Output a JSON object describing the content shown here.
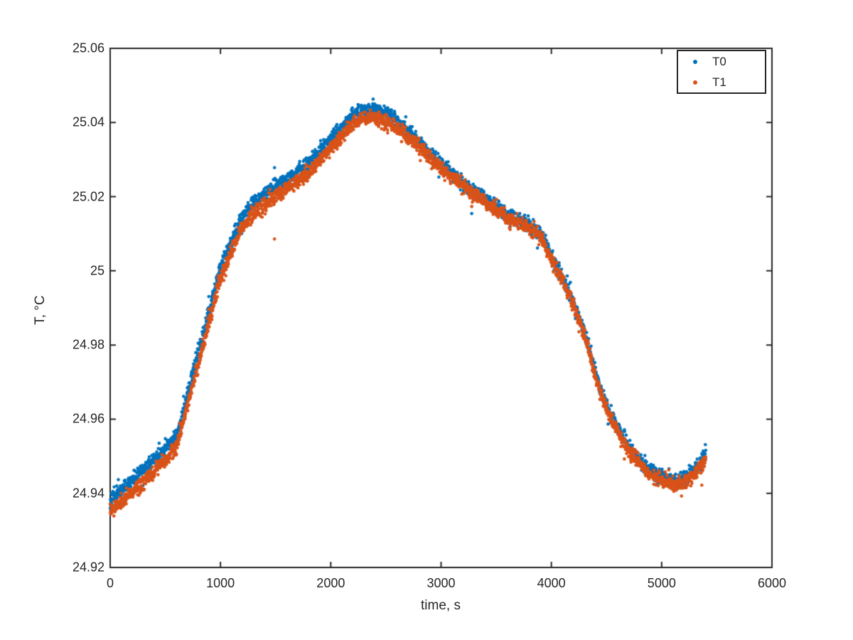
{
  "figure": {
    "background": "#ffffff",
    "axes_color": "#262626"
  },
  "chart_data": {
    "type": "scatter",
    "title": "",
    "xlabel": "time, s",
    "ylabel": "T, °C",
    "xlim": [
      0,
      6000
    ],
    "ylim": [
      24.92,
      25.06
    ],
    "grid": false,
    "x_ticks": [
      0,
      1000,
      2000,
      3000,
      4000,
      5000,
      6000
    ],
    "x_tick_labels": [
      "0",
      "1000",
      "2000",
      "3000",
      "4000",
      "5000",
      "6000"
    ],
    "y_ticks": [
      24.92,
      24.94,
      24.96,
      24.98,
      25.0,
      25.02,
      25.04,
      25.06
    ],
    "y_tick_labels": [
      "24.92",
      "24.94",
      "24.96",
      "24.98",
      "25",
      "25.02",
      "25.04",
      "25.06"
    ],
    "legend": {
      "position": "northeast",
      "entries": [
        {
          "label": "T0",
          "color": "#0072BD"
        },
        {
          "label": "T1",
          "color": "#D95319"
        }
      ]
    },
    "marker": {
      "style": "dot",
      "radius_px": 2.3
    },
    "sampling": {
      "t_start_s": 0,
      "t_end_s": 5400,
      "step_s": 2,
      "noise_sigma_C": 0.00095
    },
    "series": [
      {
        "name": "T0",
        "color": "#0072BD",
        "seed": 42,
        "anchors_t": [
          0,
          200,
          400,
          600,
          800,
          1000,
          1200,
          1300,
          1400,
          1600,
          1800,
          2000,
          2200,
          2300,
          2400,
          2500,
          2600,
          2800,
          3000,
          3200,
          3400,
          3600,
          3800,
          3900,
          4000,
          4100,
          4200,
          4300,
          4400,
          4500,
          4600,
          4700,
          4800,
          4900,
          5000,
          5100,
          5200,
          5300,
          5400
        ],
        "anchors_T": [
          24.9385,
          24.9435,
          24.949,
          24.9555,
          24.978,
          25.001,
          25.015,
          25.018,
          25.0205,
          25.0245,
          25.029,
          25.0355,
          25.042,
          25.0435,
          25.0435,
          25.0425,
          25.0405,
          25.035,
          25.0285,
          25.0235,
          25.0195,
          25.015,
          25.0125,
          25.01,
          25.004,
          24.998,
          24.9915,
          24.9835,
          24.9725,
          24.9635,
          24.9575,
          24.9525,
          24.949,
          24.946,
          24.9445,
          24.9435,
          24.944,
          24.9465,
          24.9505
        ]
      },
      {
        "name": "T1",
        "color": "#D95319",
        "seed": 1337,
        "anchors_t": [
          0,
          200,
          400,
          600,
          800,
          1000,
          1200,
          1300,
          1400,
          1600,
          1800,
          2000,
          2200,
          2300,
          2400,
          2500,
          2600,
          2800,
          3000,
          3200,
          3400,
          3600,
          3800,
          3900,
          4000,
          4100,
          4200,
          4300,
          4400,
          4500,
          4600,
          4700,
          4800,
          4900,
          5000,
          5100,
          5200,
          5300,
          5400
        ],
        "anchors_T": [
          24.9353,
          24.9403,
          24.9458,
          24.9523,
          24.975,
          24.998,
          25.0122,
          25.0152,
          25.0179,
          25.022,
          25.0265,
          25.033,
          25.0395,
          25.041,
          25.0411,
          25.0403,
          25.0385,
          25.0335,
          25.0275,
          25.0227,
          25.0187,
          25.0142,
          25.0117,
          25.0092,
          25.0032,
          24.9972,
          24.9907,
          24.9827,
          24.9717,
          24.9627,
          24.9567,
          24.9517,
          24.948,
          24.945,
          24.9433,
          24.9423,
          24.9428,
          24.9453,
          24.9493
        ]
      }
    ]
  }
}
